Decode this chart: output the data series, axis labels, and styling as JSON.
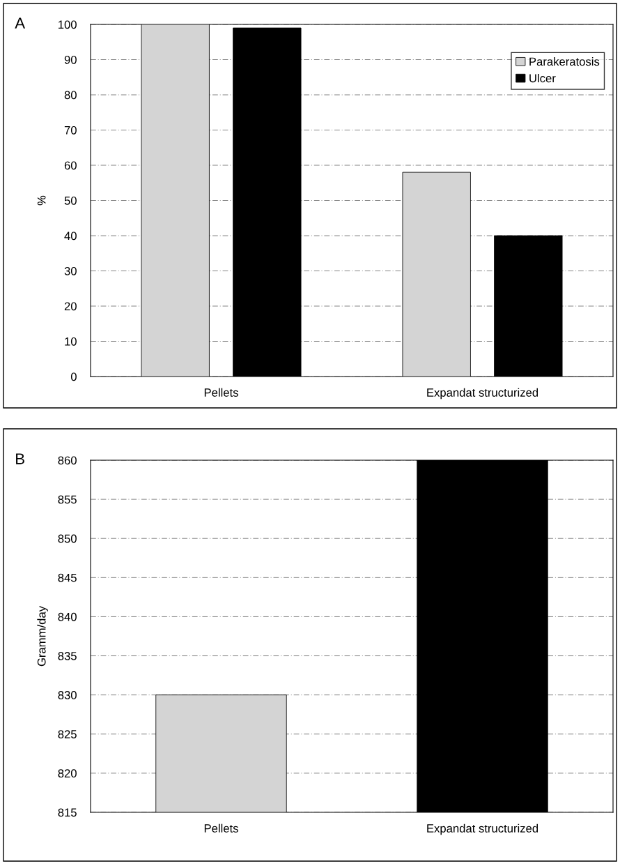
{
  "chart_data": [
    {
      "type": "bar",
      "title": "A",
      "ylabel": "%",
      "categories": [
        "Pellets",
        "Expandat structurized"
      ],
      "series": [
        {
          "name": "Parakeratosis",
          "color": "#d4d4d4",
          "values": [
            100,
            58
          ]
        },
        {
          "name": "Ulcer",
          "color": "#000000",
          "values": [
            99,
            40
          ]
        }
      ],
      "ylim": [
        0,
        100
      ],
      "yticks": [
        0,
        10,
        20,
        30,
        40,
        50,
        60,
        70,
        80,
        90,
        100
      ],
      "grid": "y",
      "legend": "top right"
    },
    {
      "type": "bar",
      "title": "B",
      "ylabel": "Gramm/day",
      "categories": [
        "Pellets",
        "Expandat structurized"
      ],
      "values": [
        830,
        860
      ],
      "colors": [
        "#d4d4d4",
        "#000000"
      ],
      "ylim": [
        815,
        860
      ],
      "yticks": [
        815,
        820,
        825,
        830,
        835,
        840,
        845,
        850,
        855,
        860
      ],
      "grid": "y"
    }
  ]
}
